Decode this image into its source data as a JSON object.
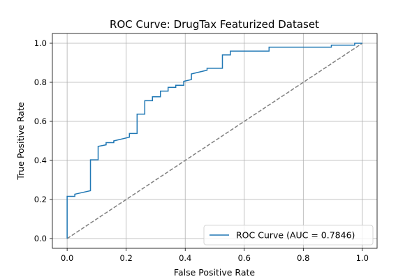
{
  "chart_data": {
    "type": "line",
    "title": "ROC Curve: DrugTax Featurized Dataset",
    "xlabel": "False Positive Rate",
    "ylabel": "True Positive Rate",
    "xlim": [
      -0.05,
      1.05
    ],
    "ylim": [
      -0.05,
      1.05
    ],
    "xticks": [
      0.0,
      0.2,
      0.4,
      0.6,
      0.8,
      1.0
    ],
    "yticks": [
      0.0,
      0.2,
      0.4,
      0.6,
      0.8,
      1.0
    ],
    "xtick_labels": [
      "0.0",
      "0.2",
      "0.4",
      "0.6",
      "0.8",
      "1.0"
    ],
    "ytick_labels": [
      "0.0",
      "0.2",
      "0.4",
      "0.6",
      "0.8",
      "1.0"
    ],
    "grid": true,
    "legend_position": "lower-right",
    "series": [
      {
        "name": "ROC Curve (AUC = 0.7846)",
        "color": "#1f77b4",
        "style": "solid",
        "x": [
          0.0,
          0.0,
          0.026,
          0.026,
          0.079,
          0.079,
          0.105,
          0.105,
          0.132,
          0.132,
          0.158,
          0.158,
          0.211,
          0.211,
          0.237,
          0.237,
          0.263,
          0.263,
          0.289,
          0.289,
          0.316,
          0.316,
          0.342,
          0.342,
          0.368,
          0.368,
          0.395,
          0.395,
          0.421,
          0.421,
          0.474,
          0.474,
          0.526,
          0.526,
          0.553,
          0.553,
          0.684,
          0.684,
          0.895,
          0.895,
          0.974,
          0.974,
          1.0
        ],
        "y": [
          0.0,
          0.216,
          0.216,
          0.227,
          0.245,
          0.403,
          0.403,
          0.472,
          0.48,
          0.491,
          0.491,
          0.5,
          0.519,
          0.538,
          0.538,
          0.637,
          0.637,
          0.706,
          0.706,
          0.726,
          0.726,
          0.755,
          0.755,
          0.774,
          0.774,
          0.785,
          0.785,
          0.805,
          0.814,
          0.843,
          0.862,
          0.872,
          0.872,
          0.94,
          0.94,
          0.96,
          0.96,
          0.98,
          0.98,
          0.99,
          0.99,
          1.0,
          1.0
        ]
      },
      {
        "name": "",
        "color": "#808080",
        "style": "dashed",
        "x": [
          0.0,
          1.0
        ],
        "y": [
          0.0,
          1.0
        ]
      }
    ]
  }
}
